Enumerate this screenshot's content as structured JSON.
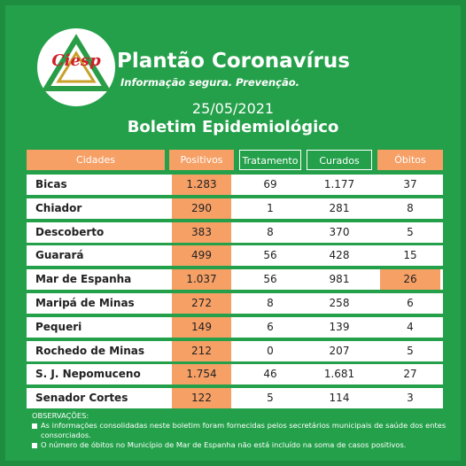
{
  "header": {
    "logo_text": "Ciesp",
    "title": "Plantão Coronavírus",
    "subtitle": "Informação segura. Prevenção.",
    "date": "25/05/2021",
    "bulletin_title": "Boletim Epidemiológico"
  },
  "table": {
    "headers": [
      "Cidades",
      "Positivos",
      "Tratamento",
      "Curados",
      "Óbitos"
    ],
    "rows": [
      [
        "Bicas",
        "1.283",
        "69",
        "1.177",
        "37"
      ],
      [
        "Chiador",
        "290",
        "1",
        "281",
        "8"
      ],
      [
        "Descoberto",
        "383",
        "8",
        "370",
        "5"
      ],
      [
        "Guarará",
        "499",
        "56",
        "428",
        "15"
      ],
      [
        "Mar de Espanha",
        "1.037",
        "56",
        "981",
        "26"
      ],
      [
        "Maripá de Minas",
        "272",
        "8",
        "258",
        "6"
      ],
      [
        "Pequeri",
        "149",
        "6",
        "139",
        "4"
      ],
      [
        "Rochedo de Minas",
        "212",
        "0",
        "207",
        "5"
      ],
      [
        "S. J. Nepomuceno",
        "1.754",
        "46",
        "1.681",
        "27"
      ],
      [
        "Senador Cortes",
        "122",
        "5",
        "114",
        "3"
      ]
    ]
  },
  "notes": {
    "title": "OBSERVAÇÕES:",
    "items": [
      "As informações consolidadas neste boletim foram fornecidas pelos secretários municipais de saúde dos entes consorciados.",
      "O número de óbitos no Município de Mar de Espanha não está incluído na soma de casos positivos."
    ]
  }
}
